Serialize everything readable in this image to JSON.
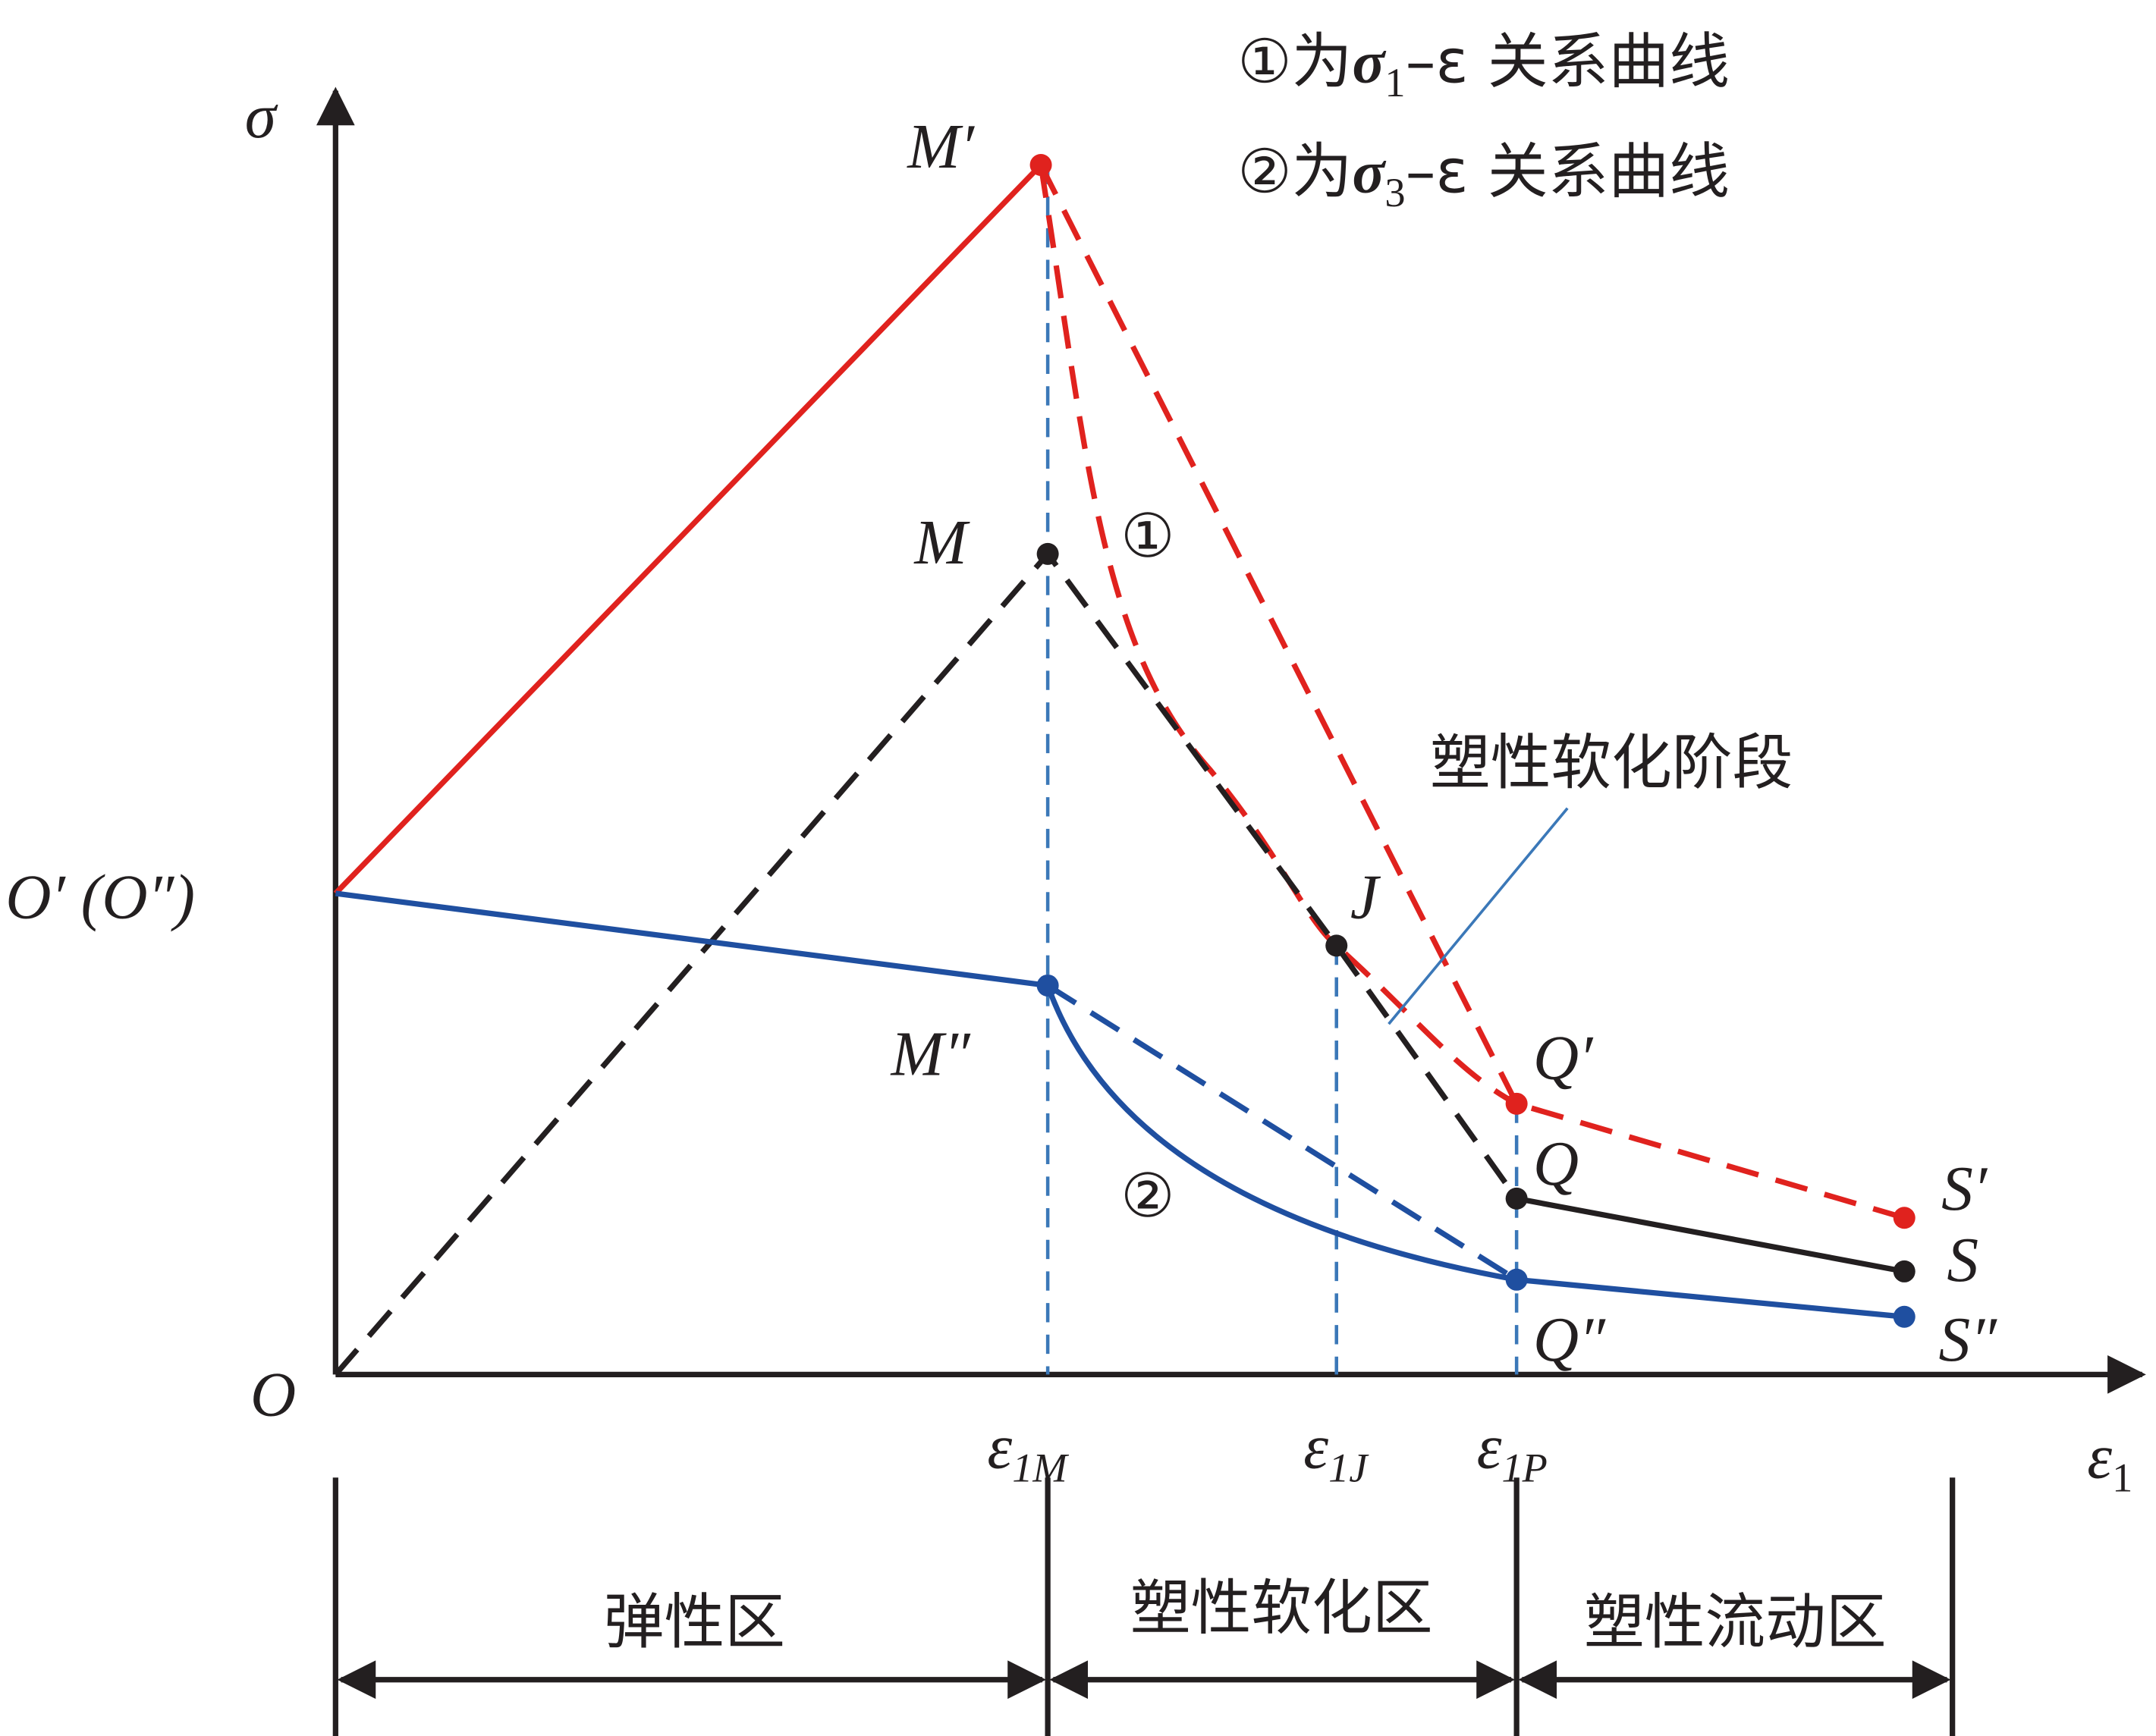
{
  "axes": {
    "y_label": "σ",
    "x_label": {
      "symbol": "ε",
      "sub": "1"
    },
    "origin": "O",
    "origin_shift": "O′ (O″)"
  },
  "legend": [
    {
      "marker": "①为",
      "symbol": "σ",
      "sub": "1",
      "tail": "–ε 关系曲线"
    },
    {
      "marker": "②为",
      "symbol": "σ",
      "sub": "3",
      "tail": "–ε 关系曲线"
    }
  ],
  "points": {
    "M1": "M′",
    "M": "M",
    "M3": "M″",
    "J": "J",
    "Q1": "Q′",
    "Q": "Q",
    "Q3": "Q″",
    "S1": "S′",
    "S": "S",
    "S3": "S″"
  },
  "curve_markers": {
    "c1": "①",
    "c2": "②"
  },
  "annotation": "塑性软化阶段",
  "strain_ticks": [
    {
      "symbol": "ε",
      "sub": "1M"
    },
    {
      "symbol": "ε",
      "sub": "1J"
    },
    {
      "symbol": "ε",
      "sub": "1P"
    }
  ],
  "zones": [
    "弹性区",
    "塑性软化区",
    "塑性流动区"
  ]
}
